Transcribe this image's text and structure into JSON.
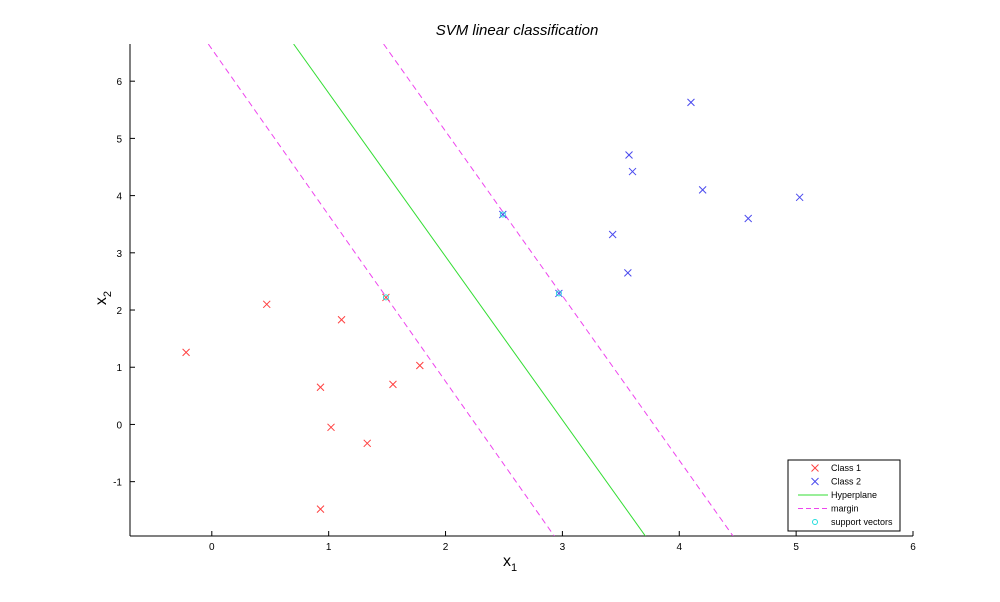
{
  "chart_data": {
    "type": "scatter",
    "title": "SVM linear classification",
    "xlabel": "x",
    "xlabel_sub": "1",
    "ylabel": "x",
    "ylabel_sub": "2",
    "xlim": [
      -0.7,
      6
    ],
    "ylim": [
      -1.95,
      6.65
    ],
    "xticks": [
      0,
      1,
      2,
      3,
      4,
      5,
      6
    ],
    "yticks": [
      -1,
      0,
      1,
      2,
      3,
      4,
      5,
      6
    ],
    "grid": false,
    "legend_position": "bottom-right",
    "series": [
      {
        "name": "Class 1",
        "marker": "x",
        "color": "#ff4040",
        "points": [
          [
            -0.22,
            1.26
          ],
          [
            0.47,
            2.1
          ],
          [
            1.11,
            1.83
          ],
          [
            1.78,
            1.03
          ],
          [
            1.55,
            0.7
          ],
          [
            0.93,
            0.65
          ],
          [
            1.02,
            -0.05
          ],
          [
            1.33,
            -0.33
          ],
          [
            0.93,
            -1.48
          ],
          [
            1.49,
            2.22
          ]
        ]
      },
      {
        "name": "Class 2",
        "marker": "x",
        "color": "#4a4aee",
        "points": [
          [
            4.1,
            5.63
          ],
          [
            3.57,
            4.71
          ],
          [
            3.6,
            4.42
          ],
          [
            4.2,
            4.1
          ],
          [
            5.03,
            3.97
          ],
          [
            4.59,
            3.6
          ],
          [
            3.43,
            3.32
          ],
          [
            3.56,
            2.65
          ],
          [
            2.97,
            2.29
          ],
          [
            2.49,
            3.67
          ]
        ]
      },
      {
        "name": "Hyperplane",
        "style": "solid",
        "color": "#33dd33",
        "points": [
          [
            0.7,
            6.65
          ],
          [
            3.71,
            -1.95
          ]
        ]
      },
      {
        "name": "margin",
        "style": "dashed",
        "color": "#ee44ee",
        "lines": [
          [
            [
              -0.03,
              6.65
            ],
            [
              2.93,
              -1.95
            ]
          ],
          [
            [
              1.47,
              6.65
            ],
            [
              4.46,
              -1.95
            ]
          ]
        ]
      },
      {
        "name": "support vectors",
        "marker": "o",
        "color": "#22dddd",
        "points": [
          [
            1.49,
            2.22
          ],
          [
            2.97,
            2.29
          ],
          [
            2.49,
            3.67
          ]
        ]
      }
    ]
  }
}
